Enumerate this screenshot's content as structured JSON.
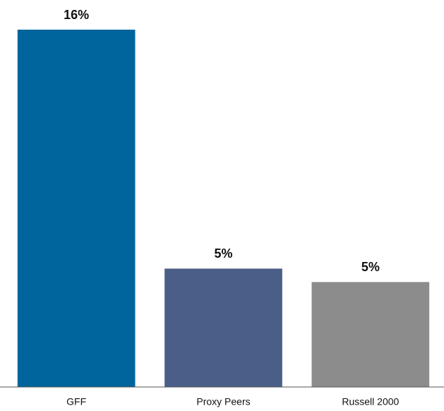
{
  "chart_data": {
    "type": "bar",
    "categories": [
      "GFF",
      "Proxy Peers",
      "Russell 2000"
    ],
    "values": [
      16,
      5.3,
      4.7
    ],
    "value_labels": [
      "16%",
      "5%",
      "5%"
    ],
    "colors": [
      "#00659c",
      "#4a5e88",
      "#8c8c8c"
    ]
  }
}
